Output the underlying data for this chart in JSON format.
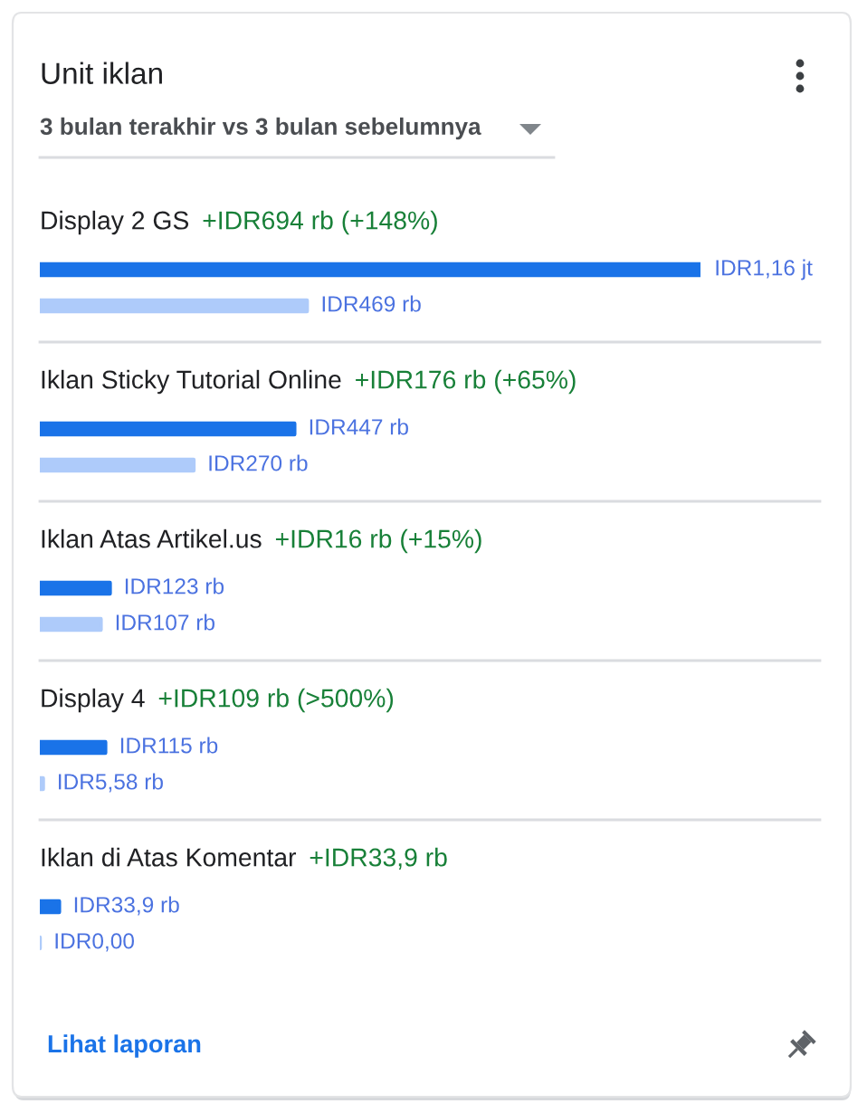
{
  "chart_data": {
    "type": "bar",
    "orientation": "horizontal",
    "title": "Unit iklan",
    "subtitle": "3 bulan terakhir vs 3 bulan sebelumnya",
    "categories": [
      "Display 2 GS",
      "Iklan Sticky Tutorial Online",
      "Iklan Atas Artikel.us",
      "Display 4",
      "Iklan di Atas Komentar"
    ],
    "series": [
      {
        "color": "#1a73e8",
        "values": [
          1160,
          447,
          123,
          115,
          33.9
        ],
        "value_labels": [
          "IDR1,16 jt",
          "IDR447 rb",
          "IDR123 rb",
          "IDR115 rb",
          "IDR33,9 rb"
        ]
      },
      {
        "color": "#aecbfa",
        "values": [
          469,
          270,
          107,
          5.58,
          0
        ],
        "value_labels": [
          "IDR469 rb",
          "IDR270 rb",
          "IDR107 rb",
          "IDR5,58 rb",
          "IDR0,00"
        ]
      }
    ],
    "annotations": [
      "+IDR694 rb (+148%)",
      "+IDR176 rb (+65%)",
      "+IDR16 rb (+15%)",
      "+IDR109 rb (>500%)",
      "+IDR33,9 rb",
      "Lihat laporan"
    ],
    "tick_labels": "y"
  }
}
